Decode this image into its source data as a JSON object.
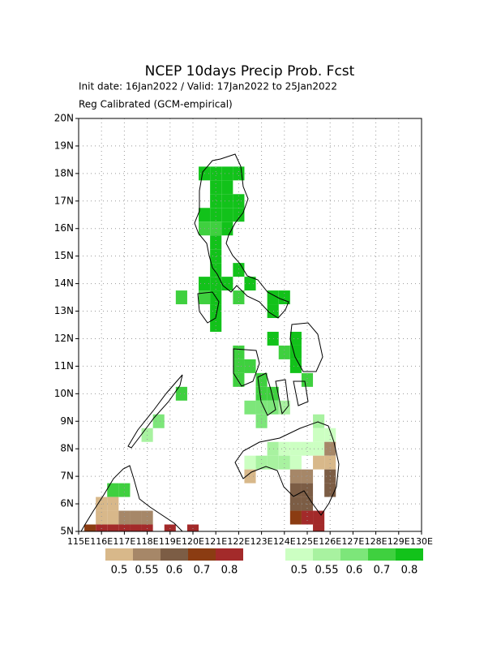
{
  "chart_data": {
    "type": "grid-map",
    "title": "NCEP 10days Precip Prob. Fcst",
    "subtitle": "Init date: 16Jan2022 / Valid: 17Jan2022 to 25Jan2022",
    "note": "Reg Calibrated (GCM-empirical)",
    "xlim": [
      115,
      130
    ],
    "ylim": [
      5,
      20
    ],
    "cell_size": 0.5,
    "grid": true,
    "xticks": [
      {
        "value": 115,
        "label": "115E"
      },
      {
        "value": 116,
        "label": "116E"
      },
      {
        "value": 117,
        "label": "117E"
      },
      {
        "value": 118,
        "label": "118E"
      },
      {
        "value": 119,
        "label": "119E"
      },
      {
        "value": 120,
        "label": "120E"
      },
      {
        "value": 121,
        "label": "121E"
      },
      {
        "value": 122,
        "label": "122E"
      },
      {
        "value": 123,
        "label": "123E"
      },
      {
        "value": 124,
        "label": "124E"
      },
      {
        "value": 125,
        "label": "125E"
      },
      {
        "value": 126,
        "label": "126E"
      },
      {
        "value": 127,
        "label": "127E"
      },
      {
        "value": 128,
        "label": "128E"
      },
      {
        "value": 129,
        "label": "129E"
      },
      {
        "value": 130,
        "label": "130E"
      }
    ],
    "yticks": [
      {
        "value": 5,
        "label": "5N"
      },
      {
        "value": 6,
        "label": "6N"
      },
      {
        "value": 7,
        "label": "7N"
      },
      {
        "value": 8,
        "label": "8N"
      },
      {
        "value": 9,
        "label": "9N"
      },
      {
        "value": 10,
        "label": "10N"
      },
      {
        "value": 11,
        "label": "11N"
      },
      {
        "value": 12,
        "label": "12N"
      },
      {
        "value": 13,
        "label": "13N"
      },
      {
        "value": 14,
        "label": "14N"
      },
      {
        "value": 15,
        "label": "15N"
      },
      {
        "value": 16,
        "label": "16N"
      },
      {
        "value": 17,
        "label": "17N"
      },
      {
        "value": 18,
        "label": "18N"
      },
      {
        "value": 19,
        "label": "19N"
      },
      {
        "value": 20,
        "label": "20N"
      }
    ],
    "dry_legend": {
      "labels": [
        "0.5",
        "0.55",
        "0.6",
        "0.7",
        "0.8"
      ],
      "colors": [
        "#d8b88a",
        "#a68768",
        "#7c5d45",
        "#8b3c12",
        "#a32a2a"
      ]
    },
    "wet_legend": {
      "labels": [
        "0.5",
        "0.55",
        "0.6",
        "0.7",
        "0.8"
      ],
      "colors": [
        "#ccffc2",
        "#a8f2a0",
        "#7de67a",
        "#3fd03f",
        "#12c21a"
      ]
    },
    "wet_cells": [
      [
        120.5,
        18,
        4
      ],
      [
        121,
        18,
        4
      ],
      [
        121.5,
        18,
        4
      ],
      [
        122,
        18,
        4
      ],
      [
        121,
        17.5,
        4
      ],
      [
        121.5,
        17.5,
        4
      ],
      [
        121,
        17,
        4
      ],
      [
        121.5,
        17,
        4
      ],
      [
        122,
        17,
        4
      ],
      [
        120.5,
        16.5,
        4
      ],
      [
        121,
        16.5,
        4
      ],
      [
        121.5,
        16.5,
        4
      ],
      [
        122,
        16.5,
        4
      ],
      [
        120.5,
        16,
        3
      ],
      [
        121,
        16,
        3
      ],
      [
        121.5,
        16,
        4
      ],
      [
        121,
        15.5,
        4
      ],
      [
        121,
        15,
        4
      ],
      [
        121,
        14.5,
        4
      ],
      [
        122,
        14.5,
        4
      ],
      [
        120.5,
        14,
        4
      ],
      [
        121,
        14,
        4
      ],
      [
        121.5,
        14,
        4
      ],
      [
        122.5,
        14,
        4
      ],
      [
        119.5,
        13.5,
        3
      ],
      [
        120.5,
        13.5,
        3
      ],
      [
        121,
        13.5,
        4
      ],
      [
        122,
        13.5,
        3
      ],
      [
        121,
        13,
        4
      ],
      [
        121,
        12.5,
        4
      ],
      [
        123.5,
        13.5,
        4
      ],
      [
        124,
        13.5,
        4
      ],
      [
        123.5,
        13,
        4
      ],
      [
        123.5,
        12,
        4
      ],
      [
        124.5,
        12,
        4
      ],
      [
        124.5,
        11.5,
        4
      ],
      [
        124,
        11.5,
        3
      ],
      [
        124.5,
        11,
        4
      ],
      [
        125,
        10.5,
        3
      ],
      [
        122,
        11.5,
        3
      ],
      [
        122,
        11,
        3
      ],
      [
        122.5,
        11,
        3
      ],
      [
        122,
        10.5,
        3
      ],
      [
        123,
        10.5,
        3
      ],
      [
        123,
        10,
        3
      ],
      [
        123.5,
        10,
        3
      ],
      [
        122.5,
        9.5,
        2
      ],
      [
        123,
        9.5,
        2
      ],
      [
        123.5,
        9.5,
        2
      ],
      [
        124,
        9.5,
        1
      ],
      [
        123,
        9,
        2
      ],
      [
        125.5,
        9,
        1
      ],
      [
        119.5,
        10,
        3
      ],
      [
        118.5,
        9,
        2
      ],
      [
        118,
        8.5,
        1
      ],
      [
        125.5,
        8.5,
        0
      ],
      [
        126,
        8.5,
        0
      ],
      [
        123.5,
        8,
        1
      ],
      [
        124,
        8,
        0
      ],
      [
        124.5,
        8,
        0
      ],
      [
        125,
        8,
        0
      ],
      [
        125.5,
        8,
        0
      ],
      [
        122.5,
        7.5,
        0
      ],
      [
        123,
        7.5,
        1
      ],
      [
        123.5,
        7.5,
        1
      ],
      [
        124,
        7.5,
        1
      ],
      [
        124.5,
        7.5,
        0
      ],
      [
        116.5,
        6.5,
        3
      ],
      [
        117,
        6.5,
        3
      ]
    ],
    "dry_cells": [
      [
        126,
        8,
        1
      ],
      [
        125.5,
        7.5,
        0
      ],
      [
        126,
        7.5,
        0
      ],
      [
        122.5,
        7,
        0
      ],
      [
        124.5,
        7,
        1
      ],
      [
        125,
        7,
        1
      ],
      [
        126,
        7,
        2
      ],
      [
        124.5,
        6.5,
        2
      ],
      [
        125,
        6.5,
        2
      ],
      [
        126,
        6.5,
        2
      ],
      [
        124.5,
        6,
        2
      ],
      [
        125,
        6,
        2
      ],
      [
        124.5,
        5.5,
        3
      ],
      [
        125,
        5.5,
        4
      ],
      [
        125.5,
        5.5,
        4
      ],
      [
        125.5,
        5,
        4
      ],
      [
        116,
        6,
        0
      ],
      [
        116.5,
        6,
        0
      ],
      [
        116,
        5.5,
        0
      ],
      [
        116.5,
        5.5,
        0
      ],
      [
        117,
        5.5,
        1
      ],
      [
        117.5,
        5.5,
        1
      ],
      [
        118,
        5.5,
        1
      ],
      [
        115.5,
        5,
        3
      ],
      [
        116,
        5,
        4
      ],
      [
        116.5,
        5,
        4
      ],
      [
        117,
        5,
        4
      ],
      [
        117.5,
        5,
        4
      ],
      [
        118,
        5,
        4
      ],
      [
        119,
        5,
        4
      ],
      [
        120,
        5,
        4
      ]
    ]
  }
}
